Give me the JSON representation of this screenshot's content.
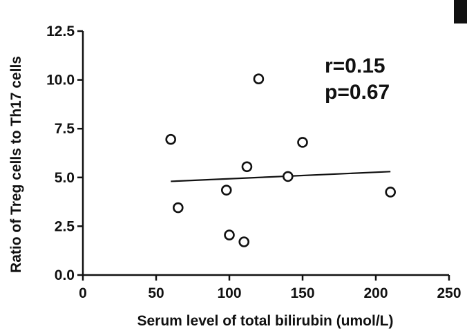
{
  "chart_data": {
    "type": "scatter",
    "xlabel": "Serum level of total bilirubin (umol/L)",
    "ylabel": "Ratio of Treg cells to Th17 cells",
    "xlim": [
      0,
      250
    ],
    "ylim": [
      0,
      12.5
    ],
    "x_ticks": [
      0,
      50,
      100,
      150,
      200,
      250
    ],
    "y_ticks": [
      0.0,
      2.5,
      5.0,
      7.5,
      10.0,
      12.5
    ],
    "x_tick_labels": [
      "0",
      "50",
      "100",
      "150",
      "200",
      "250"
    ],
    "y_tick_labels": [
      "0.0",
      "2.5",
      "5.0",
      "7.5",
      "10.0",
      "12.5"
    ],
    "grid": false,
    "points": [
      {
        "x": 60,
        "y": 6.95
      },
      {
        "x": 65,
        "y": 3.45
      },
      {
        "x": 98,
        "y": 4.35
      },
      {
        "x": 100,
        "y": 2.05
      },
      {
        "x": 110,
        "y": 1.7
      },
      {
        "x": 112,
        "y": 5.55
      },
      {
        "x": 120,
        "y": 10.05
      },
      {
        "x": 140,
        "y": 5.05
      },
      {
        "x": 150,
        "y": 6.8
      },
      {
        "x": 210,
        "y": 4.25
      }
    ],
    "fit_line": {
      "x": [
        60,
        210
      ],
      "y": [
        4.8,
        5.3
      ]
    },
    "annotations": [
      "r=0.15",
      "p=0.67"
    ]
  },
  "colors": {
    "ink": "#111111",
    "background": "#ffffff"
  }
}
